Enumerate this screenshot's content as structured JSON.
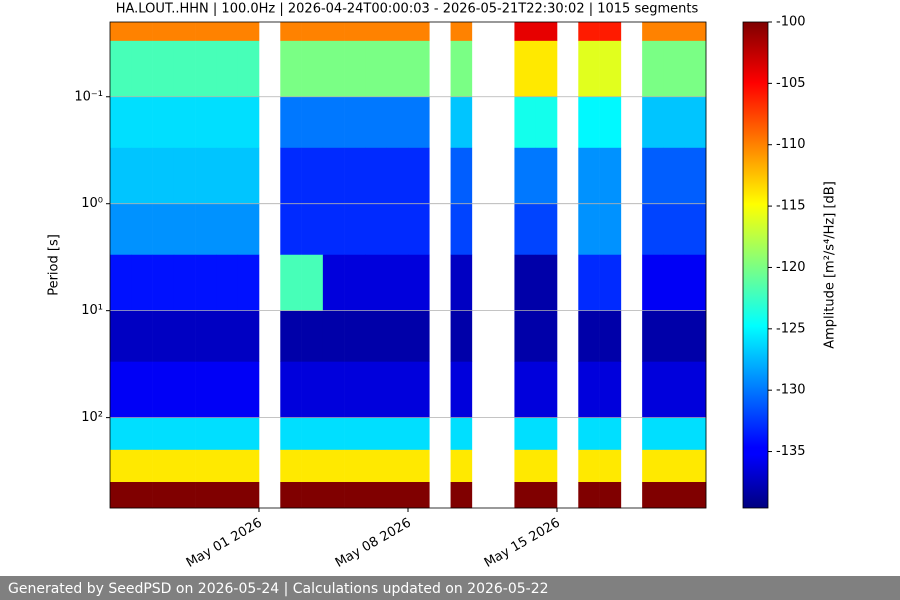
{
  "chart_data": {
    "type": "heatmap",
    "title": "HA.LOUT..HHN | 100.0Hz | 2026-04-24T00:00:03 - 2026-05-21T22:30:02 | 1015 segments",
    "y_label": "Period [s]",
    "colorbar_label": "Amplitude [m²/s⁴/Hz] [dB]",
    "colormap": "jet",
    "x": [
      "2026-04-24",
      "2026-04-25",
      "2026-04-26",
      "2026-04-27",
      "2026-04-28",
      "2026-04-29",
      "2026-04-30",
      "2026-05-01",
      "2026-05-02",
      "2026-05-03",
      "2026-05-04",
      "2026-05-05",
      "2026-05-06",
      "2026-05-07",
      "2026-05-08",
      "2026-05-09",
      "2026-05-10",
      "2026-05-11",
      "2026-05-12",
      "2026-05-13",
      "2026-05-14",
      "2026-05-15",
      "2026-05-16",
      "2026-05-17",
      "2026-05-18",
      "2026-05-19",
      "2026-05-20",
      "2026-05-21"
    ],
    "xlim": [
      "2026-04-24",
      "2026-05-22"
    ],
    "xticks": [
      {
        "value": "2026-05-01",
        "label": "May 01 2026"
      },
      {
        "value": "2026-05-08",
        "label": "May 08 2026"
      },
      {
        "value": "2026-05-15",
        "label": "May 15 2026"
      }
    ],
    "y_bins": [
      0.02,
      0.03,
      0.1,
      0.3,
      1,
      3,
      10,
      30,
      100,
      200,
      400,
      700
    ],
    "ylim": [
      0.02,
      700
    ],
    "y_log": true,
    "y_inverted": true,
    "yticks": [
      {
        "value": 0.1,
        "label": "10⁻¹"
      },
      {
        "value": 1,
        "label": "10⁰"
      },
      {
        "value": 10,
        "label": "10¹"
      },
      {
        "value": 100,
        "label": "10²"
      }
    ],
    "grid": true,
    "clim": [
      -139.6,
      -100
    ],
    "cticks": [
      -100,
      -105,
      -110,
      -115,
      -120,
      -125,
      -130,
      -135
    ],
    "z": [
      [
        -110,
        -110,
        -110,
        -110,
        -110,
        -110,
        -110,
        null,
        -110,
        -110,
        -110,
        -110,
        -110,
        -110,
        -110,
        null,
        -110,
        null,
        null,
        -104,
        -104,
        null,
        -106,
        -106,
        null,
        -110,
        -110,
        -110
      ],
      [
        -122,
        -122,
        -122,
        -122,
        -122,
        -122,
        -122,
        null,
        -120,
        -120,
        -120,
        -120,
        -120,
        -120,
        -120,
        null,
        -120,
        null,
        null,
        -114,
        -114,
        null,
        -116,
        -116,
        null,
        -120,
        -120,
        -120
      ],
      [
        -126,
        -126,
        -126,
        -126,
        -126,
        -126,
        -126,
        null,
        -130,
        -130,
        -130,
        -130,
        -130,
        -130,
        -130,
        null,
        -127,
        null,
        null,
        -124,
        -124,
        null,
        -125,
        -125,
        null,
        -127,
        -127,
        -127
      ],
      [
        -127,
        -127,
        -127,
        -127,
        -127,
        -127,
        -127,
        null,
        -133,
        -133,
        -133,
        -133,
        -133,
        -133,
        -133,
        null,
        -131,
        null,
        null,
        -130,
        -130,
        null,
        -129,
        -129,
        null,
        -131,
        -131,
        -131
      ],
      [
        -129,
        -129,
        -129,
        -129,
        -129,
        -129,
        -129,
        null,
        -133,
        -133,
        -133,
        -133,
        -133,
        -133,
        -133,
        null,
        -132,
        null,
        null,
        -132,
        -132,
        null,
        -129,
        -129,
        null,
        -132,
        -132,
        -132
      ],
      [
        -134,
        -134,
        -134,
        -134,
        -134,
        -134,
        -134,
        null,
        -122,
        -122,
        -136,
        -136,
        -136,
        -136,
        -136,
        null,
        -137,
        null,
        null,
        -138,
        -138,
        null,
        -133,
        -133,
        null,
        -135,
        -135,
        -135
      ],
      [
        -137,
        -137,
        -137,
        -137,
        -137,
        -137,
        -137,
        null,
        -138,
        -138,
        -138,
        -138,
        -138,
        -138,
        -138,
        null,
        -138,
        null,
        null,
        -138,
        -138,
        null,
        -138,
        -138,
        null,
        -138,
        -138,
        -138
      ],
      [
        -135,
        -135,
        -135,
        -135,
        -135,
        -135,
        -135,
        null,
        -136,
        -136,
        -136,
        -136,
        -136,
        -136,
        -136,
        null,
        -136,
        null,
        null,
        -136,
        -136,
        null,
        -136,
        -136,
        null,
        -136,
        -136,
        -136
      ],
      [
        -126,
        -126,
        -126,
        -126,
        -126,
        -126,
        -126,
        null,
        -126,
        -126,
        -126,
        -126,
        -126,
        -126,
        -126,
        null,
        -126,
        null,
        null,
        -126,
        -126,
        null,
        -126,
        -126,
        null,
        -126,
        -126,
        -126
      ],
      [
        -114,
        -114,
        -114,
        -114,
        -114,
        -114,
        -114,
        null,
        -114,
        -114,
        -114,
        -114,
        -114,
        -114,
        -114,
        null,
        -114,
        null,
        null,
        -114,
        -114,
        null,
        -114,
        -114,
        null,
        -114,
        -114,
        -114
      ],
      [
        -100,
        -100,
        -100,
        -100,
        -100,
        -100,
        -100,
        null,
        -100,
        -100,
        -100,
        -100,
        -100,
        -100,
        -100,
        null,
        -100,
        null,
        null,
        -100,
        -100,
        null,
        -100,
        -100,
        null,
        -100,
        -100,
        -100
      ]
    ]
  },
  "footer": "Generated by SeedPSD on 2026-05-24 | Calculations updated on 2026-05-22"
}
